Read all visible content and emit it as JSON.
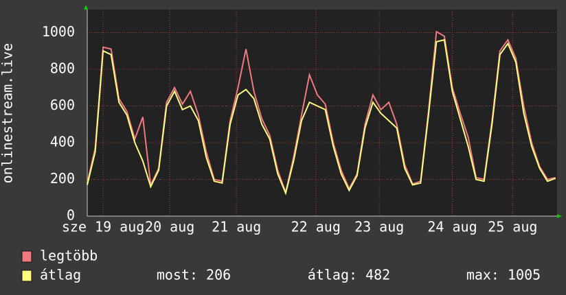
{
  "chart_data": {
    "type": "line",
    "y_label": "onlinestream.live",
    "x": [
      0,
      0.125,
      0.25,
      0.375,
      0.5,
      0.625,
      0.75,
      0.875,
      1,
      1.125,
      1.25,
      1.375,
      1.5,
      1.625,
      1.75,
      1.875,
      2,
      2.125,
      2.25,
      2.375,
      2.5,
      2.625,
      2.75,
      2.875,
      3,
      3.125,
      3.25,
      3.375,
      3.5,
      3.625,
      3.75,
      3.875,
      4,
      4.125,
      4.25,
      4.375,
      4.5,
      4.625,
      4.75,
      4.875,
      5,
      5.125,
      5.25,
      5.375,
      5.5,
      5.625,
      5.75,
      5.875,
      6,
      6.125,
      6.25,
      6.375,
      6.5,
      6.625,
      6.75,
      6.875,
      7,
      7.125,
      7.25,
      7.375
    ],
    "series": [
      {
        "name": "legtöbb",
        "color": "#f07a80",
        "values": [
          180,
          370,
          920,
          910,
          640,
          570,
          420,
          540,
          170,
          260,
          620,
          700,
          610,
          680,
          550,
          350,
          200,
          190,
          520,
          700,
          910,
          680,
          530,
          440,
          250,
          130,
          320,
          550,
          770,
          660,
          610,
          400,
          250,
          150,
          230,
          500,
          660,
          580,
          620,
          500,
          280,
          175,
          190,
          570,
          1005,
          980,
          700,
          560,
          430,
          210,
          200,
          520,
          900,
          960,
          860,
          600,
          400,
          270,
          200,
          210
        ]
      },
      {
        "name": "átlag",
        "color": "#ffff80",
        "values": [
          170,
          350,
          900,
          880,
          620,
          550,
          400,
          300,
          160,
          250,
          600,
          680,
          580,
          600,
          520,
          320,
          190,
          180,
          500,
          660,
          690,
          640,
          500,
          420,
          230,
          125,
          300,
          520,
          620,
          600,
          580,
          380,
          230,
          140,
          220,
          480,
          620,
          560,
          520,
          480,
          260,
          170,
          180,
          550,
          950,
          960,
          680,
          530,
          380,
          200,
          190,
          500,
          880,
          940,
          840,
          560,
          380,
          260,
          190,
          206
        ]
      }
    ],
    "xlim": [
      0,
      7.4
    ],
    "xticks": [
      {
        "value": 0.25,
        "label": "sze 19 aug"
      },
      {
        "value": 1.3,
        "label": "20 aug"
      },
      {
        "value": 2.35,
        "label": "21 aug"
      },
      {
        "value": 3.6,
        "label": "22 aug"
      },
      {
        "value": 4.6,
        "label": "23 aug"
      },
      {
        "value": 5.75,
        "label": "24 aug"
      },
      {
        "value": 6.7,
        "label": "25 aug"
      }
    ],
    "ylim": [
      0,
      1125
    ],
    "yticks": [
      0,
      200,
      400,
      600,
      800,
      1000
    ],
    "grid": true,
    "stats": [
      "most: 206",
      "átlag: 482",
      "max: 1005"
    ]
  }
}
